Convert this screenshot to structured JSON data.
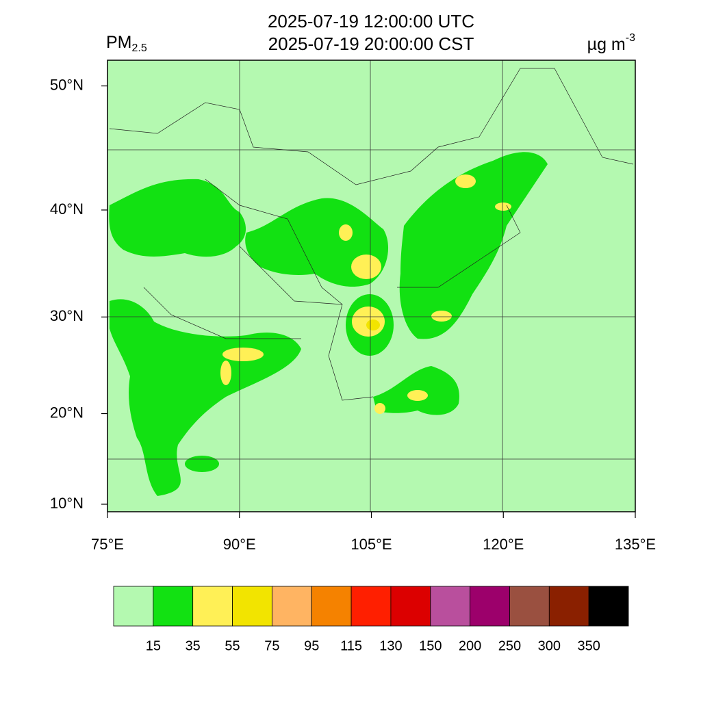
{
  "header": {
    "utc_time": "2025-07-19 12:00:00 UTC",
    "local_time": "2025-07-19 20:00:00 CST",
    "species": {
      "name": "PM",
      "subscript": "2.5"
    },
    "units": {
      "base": "µg m",
      "superscript": "-3"
    }
  },
  "map": {
    "lat_ticks": [
      {
        "value": 50,
        "label": "50°N"
      },
      {
        "value": 40,
        "label": "40°N"
      },
      {
        "value": 30,
        "label": "30°N"
      },
      {
        "value": 20,
        "label": "20°N"
      },
      {
        "value": 10,
        "label": "10°N"
      }
    ],
    "lon_ticks": [
      {
        "value": 75,
        "label": "75°E"
      },
      {
        "value": 90,
        "label": "90°E"
      },
      {
        "value": 105,
        "label": "105°E"
      },
      {
        "value": 120,
        "label": "120°E"
      },
      {
        "value": 135,
        "label": "135°E"
      }
    ],
    "lon_range": [
      75,
      135
    ]
  },
  "colorbar": {
    "colors": [
      "#b4f9b0",
      "#12e112",
      "#fff056",
      "#f2e400",
      "#ffb462",
      "#f58200",
      "#ff1f00",
      "#dc0000",
      "#b94f9d",
      "#9c006b",
      "#9a5040",
      "#8a2000",
      "#000000"
    ],
    "levels": [
      15,
      35,
      55,
      75,
      95,
      115,
      130,
      150,
      200,
      250,
      300,
      350
    ]
  }
}
